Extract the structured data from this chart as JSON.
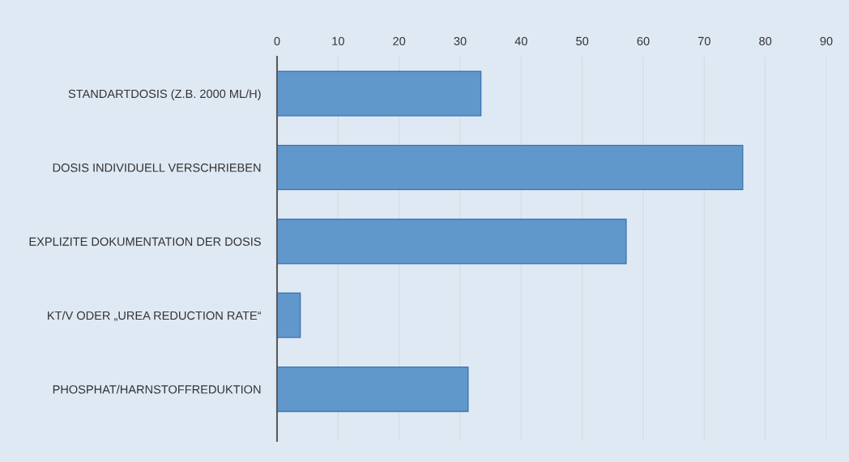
{
  "chart_data": {
    "type": "bar",
    "orientation": "horizontal",
    "categories": [
      "STANDARTDOSIS (Z.B. 2000 ML/H)",
      "DOSIS INDIVIDUELL VERSCHRIEBEN",
      "EXPLIZITE DOKUMENTATION DER DOSIS",
      "KT/V ODER „UREA REDUCTION RATE“",
      "PHOSPHAT/HARNSTOFFREDUKTION"
    ],
    "values": [
      33.4,
      76.3,
      57.2,
      3.8,
      31.3
    ],
    "color": "#6198cb",
    "xlim": [
      0,
      90
    ],
    "xticks": [
      0,
      10,
      20,
      30,
      40,
      50,
      60,
      70,
      80,
      90
    ],
    "grid": "x"
  }
}
